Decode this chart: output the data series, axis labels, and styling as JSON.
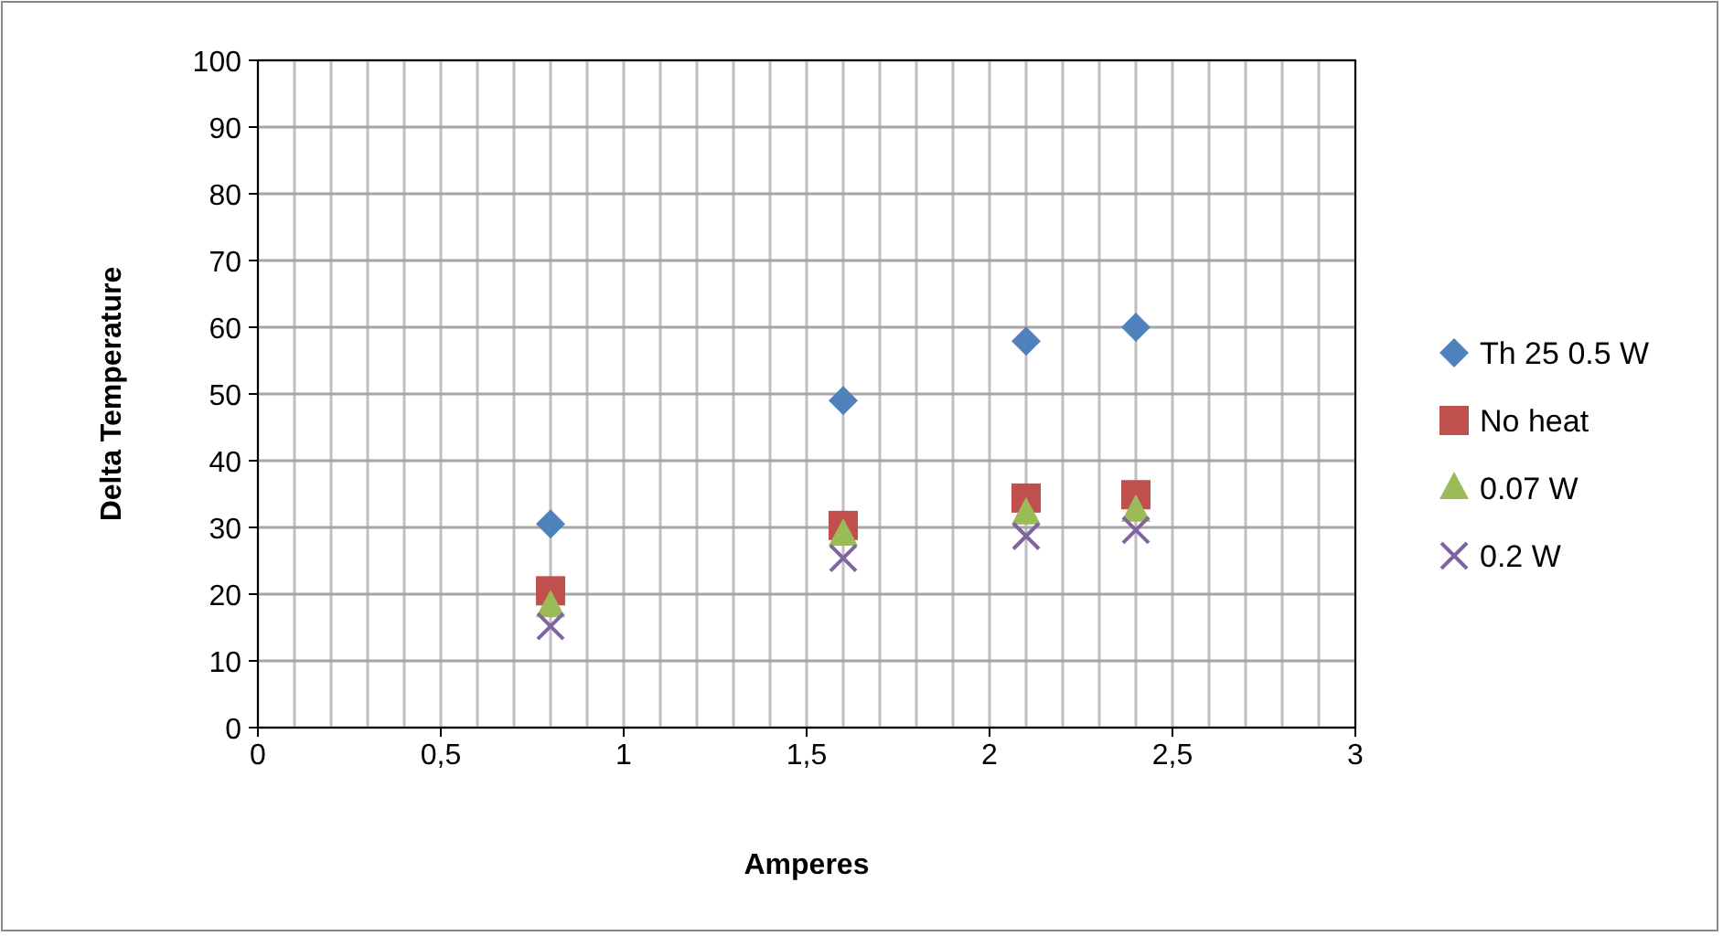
{
  "chart_data": {
    "type": "scatter",
    "xlabel": "Amperes",
    "ylabel": "Delta Temperature",
    "x": [
      0.8,
      1.6,
      2.1,
      2.4
    ],
    "series": [
      {
        "name": "Th 25 0.5 W",
        "color": "#4f81bd",
        "marker": "diamond",
        "values": [
          30.5,
          49,
          57.9,
          60
        ]
      },
      {
        "name": "No heat",
        "color": "#c0504d",
        "marker": "square",
        "values": [
          20.5,
          30.3,
          34.4,
          34.9
        ]
      },
      {
        "name": "0.07 W",
        "color": "#9bbb59",
        "marker": "triangle",
        "values": [
          18.2,
          28.9,
          32.1,
          32.5
        ]
      },
      {
        "name": "0.2 W",
        "color": "#8064a2",
        "marker": "cross",
        "values": [
          15.2,
          25.4,
          28.7,
          29.6
        ]
      }
    ],
    "xlim": [
      0,
      3
    ],
    "xticks": [
      0,
      {
        "value": 0.1,
        "label": null
      },
      {
        "value": 0.2,
        "label": null
      },
      {
        "value": 0.3,
        "label": null
      },
      {
        "value": 0.4,
        "label": null
      },
      {
        "value": 0.5,
        "label": "0,5"
      },
      {
        "value": 0.6,
        "label": null
      },
      {
        "value": 0.7,
        "label": null
      },
      {
        "value": 0.8,
        "label": null
      },
      {
        "value": 0.9,
        "label": null
      },
      1,
      {
        "value": 1.1,
        "label": null
      },
      {
        "value": 1.2,
        "label": null
      },
      {
        "value": 1.3,
        "label": null
      },
      {
        "value": 1.4,
        "label": null
      },
      {
        "value": 1.5,
        "label": "1,5"
      },
      {
        "value": 1.6,
        "label": null
      },
      {
        "value": 1.7,
        "label": null
      },
      {
        "value": 1.8,
        "label": null
      },
      {
        "value": 1.9,
        "label": null
      },
      2,
      {
        "value": 2.1,
        "label": null
      },
      {
        "value": 2.2,
        "label": null
      },
      {
        "value": 2.3,
        "label": null
      },
      {
        "value": 2.4,
        "label": null
      },
      {
        "value": 2.5,
        "label": "2,5"
      },
      {
        "value": 2.6,
        "label": null
      },
      {
        "value": 2.7,
        "label": null
      },
      {
        "value": 2.8,
        "label": null
      },
      {
        "value": 2.9,
        "label": null
      },
      3
    ],
    "ylim": [
      0,
      100
    ],
    "yticks": [
      0,
      10,
      20,
      30,
      40,
      50,
      60,
      70,
      80,
      90,
      100
    ],
    "grid": true,
    "legend": "right"
  }
}
